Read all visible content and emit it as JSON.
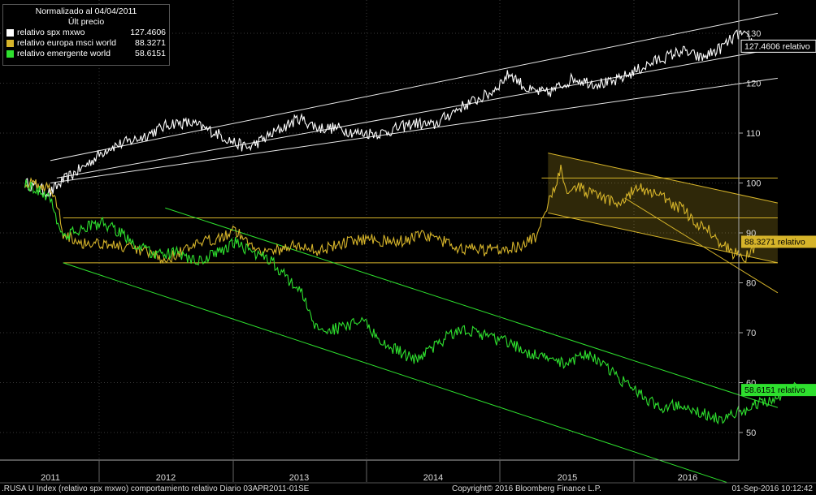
{
  "legend": {
    "title": "Normalizado al 04/04/2011",
    "subtitle": "Últ precio",
    "items": [
      {
        "name": "relativo spx mxwo",
        "value": "127.4606",
        "color": "#ffffff"
      },
      {
        "name": "relativo europa msci world",
        "value": "88.3271",
        "color": "#d6b42a"
      },
      {
        "name": "relativo emergente world",
        "value": "58.6151",
        "color": "#2ee02e"
      }
    ]
  },
  "footer": {
    "left": ".RUSA U Index (relativo spx mxwo) comportamiento relativo  Diario 03APR2011-01SE",
    "center": "Copyright© 2016 Bloomberg Finance L.P.",
    "right": "01-Sep-2016 10:12:42"
  },
  "chart_data": {
    "type": "line",
    "x_tick_labels": [
      "2011",
      "2012",
      "2013",
      "2014",
      "2015",
      "2016"
    ],
    "y_ticks": [
      50,
      60,
      70,
      80,
      90,
      100,
      110,
      120,
      130
    ],
    "ylim": [
      46,
      138
    ],
    "xlim": [
      2011.0,
      2016.7
    ],
    "grid": true,
    "series": [
      {
        "name": "relativo spx mxwo",
        "color": "#ffffff",
        "last_label": "127.4606 relativo",
        "points": [
          [
            2010.8,
            100
          ],
          [
            2011.0,
            98
          ],
          [
            2011.1,
            100.5
          ],
          [
            2011.25,
            103
          ],
          [
            2011.45,
            107
          ],
          [
            2011.7,
            109
          ],
          [
            2011.95,
            112
          ],
          [
            2012.1,
            112
          ],
          [
            2012.3,
            110
          ],
          [
            2012.45,
            108
          ],
          [
            2012.55,
            107
          ],
          [
            2012.75,
            110
          ],
          [
            2012.95,
            113
          ],
          [
            2013.1,
            111
          ],
          [
            2013.25,
            111
          ],
          [
            2013.4,
            110
          ],
          [
            2013.6,
            110
          ],
          [
            2013.85,
            112
          ],
          [
            2014.0,
            111.5
          ],
          [
            2014.2,
            115
          ],
          [
            2014.45,
            118
          ],
          [
            2014.6,
            122
          ],
          [
            2014.75,
            118.5
          ],
          [
            2014.9,
            118
          ],
          [
            2015.1,
            121
          ],
          [
            2015.25,
            120
          ],
          [
            2015.4,
            120
          ],
          [
            2015.55,
            122
          ],
          [
            2015.75,
            124.5
          ],
          [
            2015.95,
            126.5
          ],
          [
            2016.1,
            125
          ],
          [
            2016.25,
            127
          ],
          [
            2016.4,
            130
          ],
          [
            2016.55,
            127.5
          ]
        ]
      },
      {
        "name": "relativo europa msci world",
        "color": "#d6b42a",
        "last_label": "88.3271 relativo",
        "points": [
          [
            2010.8,
            100
          ],
          [
            2011.0,
            99
          ],
          [
            2011.05,
            96
          ],
          [
            2011.1,
            90
          ],
          [
            2011.25,
            88
          ],
          [
            2011.4,
            88
          ],
          [
            2011.6,
            87
          ],
          [
            2011.75,
            86
          ],
          [
            2011.9,
            84.5
          ],
          [
            2012.0,
            86
          ],
          [
            2012.15,
            87.5
          ],
          [
            2012.3,
            89
          ],
          [
            2012.45,
            90.5
          ],
          [
            2012.55,
            88
          ],
          [
            2012.7,
            86
          ],
          [
            2012.9,
            87.5
          ],
          [
            2013.1,
            86.5
          ],
          [
            2013.3,
            88
          ],
          [
            2013.5,
            89
          ],
          [
            2013.7,
            88
          ],
          [
            2013.9,
            89.5
          ],
          [
            2014.0,
            89
          ],
          [
            2014.2,
            87
          ],
          [
            2014.4,
            86.5
          ],
          [
            2014.55,
            87
          ],
          [
            2014.7,
            87.5
          ],
          [
            2014.8,
            89
          ],
          [
            2014.85,
            93
          ],
          [
            2014.92,
            97
          ],
          [
            2015.0,
            103
          ],
          [
            2015.05,
            99
          ],
          [
            2015.15,
            99
          ],
          [
            2015.3,
            97
          ],
          [
            2015.45,
            96
          ],
          [
            2015.6,
            99
          ],
          [
            2015.75,
            98
          ],
          [
            2015.85,
            96
          ],
          [
            2015.95,
            95
          ],
          [
            2016.05,
            92
          ],
          [
            2016.15,
            91
          ],
          [
            2016.25,
            88
          ],
          [
            2016.35,
            86
          ],
          [
            2016.45,
            85
          ],
          [
            2016.55,
            88.3
          ]
        ]
      },
      {
        "name": "relativo emergente world",
        "color": "#2ee02e",
        "last_label": "58.6151 relativo",
        "points": [
          [
            2010.8,
            100
          ],
          [
            2011.0,
            97
          ],
          [
            2011.05,
            93
          ],
          [
            2011.1,
            89
          ],
          [
            2011.25,
            91
          ],
          [
            2011.4,
            92
          ],
          [
            2011.55,
            90
          ],
          [
            2011.7,
            87
          ],
          [
            2011.85,
            85.5
          ],
          [
            2012.0,
            86
          ],
          [
            2012.15,
            84
          ],
          [
            2012.3,
            86
          ],
          [
            2012.45,
            88
          ],
          [
            2012.6,
            86
          ],
          [
            2012.75,
            84
          ],
          [
            2012.85,
            81
          ],
          [
            2012.95,
            79
          ],
          [
            2013.0,
            76
          ],
          [
            2013.05,
            72
          ],
          [
            2013.15,
            70.5
          ],
          [
            2013.3,
            71
          ],
          [
            2013.45,
            72.5
          ],
          [
            2013.6,
            68
          ],
          [
            2013.75,
            66
          ],
          [
            2013.85,
            64.5
          ],
          [
            2014.0,
            67
          ],
          [
            2014.15,
            70
          ],
          [
            2014.3,
            70.5
          ],
          [
            2014.45,
            69
          ],
          [
            2014.6,
            68
          ],
          [
            2014.75,
            66
          ],
          [
            2014.9,
            64.5
          ],
          [
            2015.05,
            64
          ],
          [
            2015.2,
            66
          ],
          [
            2015.35,
            63
          ],
          [
            2015.5,
            60
          ],
          [
            2015.65,
            57
          ],
          [
            2015.8,
            55
          ],
          [
            2015.95,
            56
          ],
          [
            2016.1,
            54
          ],
          [
            2016.25,
            52.5
          ],
          [
            2016.4,
            54
          ],
          [
            2016.55,
            56
          ],
          [
            2016.7,
            57
          ],
          [
            2016.85,
            59.5
          ],
          [
            2016.95,
            58.6
          ]
        ]
      }
    ],
    "trendlines": [
      {
        "color": "#e6e6e6",
        "from": [
          2011.0,
          104.5
        ],
        "to": [
          2016.7,
          134
        ]
      },
      {
        "color": "#e6e6e6",
        "from": [
          2011.0,
          100
        ],
        "to": [
          2016.7,
          121
        ]
      },
      {
        "color": "#e6e6e6",
        "from": [
          2011.05,
          101
        ],
        "to": [
          2016.7,
          127
        ]
      },
      {
        "color": "#d6b42a",
        "from": [
          2011.1,
          93
        ],
        "to": [
          2016.7,
          93
        ]
      },
      {
        "color": "#d6b42a",
        "from": [
          2011.1,
          84
        ],
        "to": [
          2016.7,
          84
        ]
      },
      {
        "color": "#d6b42a",
        "from": [
          2014.85,
          101
        ],
        "to": [
          2016.7,
          101
        ]
      },
      {
        "color": "#d6b42a",
        "from": [
          2014.9,
          106
        ],
        "to": [
          2016.7,
          96
        ]
      },
      {
        "color": "#d6b42a",
        "from": [
          2014.9,
          94
        ],
        "to": [
          2016.7,
          84
        ]
      },
      {
        "color": "#d6b42a",
        "from": [
          2015.5,
          97
        ],
        "to": [
          2016.7,
          78
        ]
      },
      {
        "color": "#2ee02e",
        "from": [
          2011.9,
          95
        ],
        "to": [
          2016.7,
          55
        ]
      },
      {
        "color": "#2ee02e",
        "from": [
          2011.1,
          84
        ],
        "to": [
          2016.3,
          40
        ]
      }
    ]
  }
}
